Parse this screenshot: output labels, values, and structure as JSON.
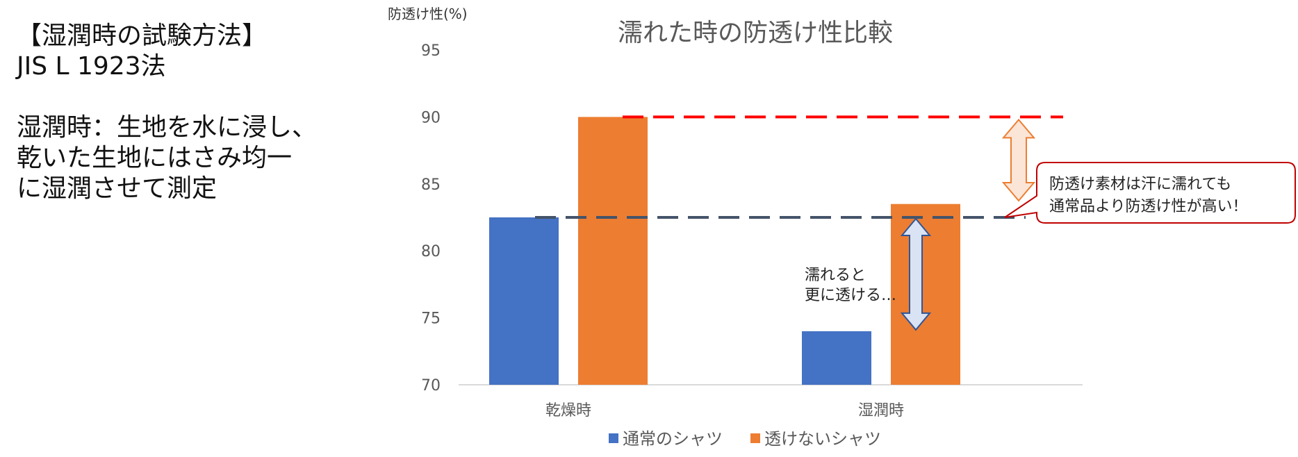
{
  "left_text": {
    "method_heading": "【湿潤時の試験方法】",
    "method_standard": "JIS L 1923法",
    "desc_line1": "湿潤時：生地を水に浸し、",
    "desc_line2": "乾いた生地にはさみ均一",
    "desc_line3": "に湿潤させて測定"
  },
  "chart_data": {
    "type": "bar",
    "title": "濡れた時の防透け性比較",
    "ylabel": "防透け性(%)",
    "xlabel": "",
    "ylim": [
      70,
      95
    ],
    "yticks": [
      "70",
      "75",
      "80",
      "85",
      "90",
      "95"
    ],
    "categories": [
      "乾燥時",
      "湿潤時"
    ],
    "series": [
      {
        "name": "通常のシャツ",
        "values": [
          82.5,
          74.0
        ],
        "color": "#4472C4"
      },
      {
        "name": "透けないシャツ",
        "values": [
          90.0,
          83.5
        ],
        "color": "#ED7D31"
      }
    ],
    "reference_lines": [
      {
        "value": 90.0,
        "color": "#FF0000"
      },
      {
        "value": 82.5,
        "color": "#44546A"
      }
    ],
    "legend_position": "bottom",
    "annotations": {
      "wet_note_line1": "濡れると",
      "wet_note_line2": "更に透ける…",
      "callout_line1": "防透け素材は汗に濡れても",
      "callout_line2": "通常品より防透け性が高い！"
    }
  }
}
